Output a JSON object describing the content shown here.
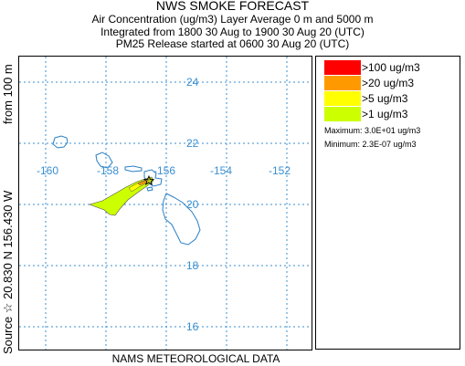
{
  "header": {
    "title": "NWS SMOKE FORECAST",
    "line1": "Air Concentration (ug/m3) Layer Average    0 m and  5000 m",
    "line2": "Integrated from 1800 30 Aug to 1900 30 Aug 20 (UTC)",
    "line3": "PM25 Release started at 0600 30 Aug 20 (UTC)"
  },
  "side_label": {
    "source": "Source ☆  20.830  N 156.430  W",
    "height": "from   100 m"
  },
  "footer": "NAMS METEOROLOGICAL DATA",
  "map": {
    "lat_labels": [
      "24",
      "22",
      "20",
      "18",
      "16"
    ],
    "lon_labels": [
      "-160",
      "-158",
      "-156",
      "-154",
      "-152"
    ],
    "grid_color": "#3a8fd0",
    "coast_color": "#2a7fc4",
    "plume_colors": {
      "gt1": "#ccff00",
      "gt5": "#ffff00",
      "gt20": "#ff9900"
    },
    "source_marker": "star"
  },
  "legend": {
    "items": [
      {
        "label": ">100 ug/m3",
        "color": "#ff0000"
      },
      {
        "label": ">20 ug/m3",
        "color": "#ff9900"
      },
      {
        "label": ">5 ug/m3",
        "color": "#ffff00"
      },
      {
        "label": ">1 ug/m3",
        "color": "#ccff00"
      }
    ],
    "maximum": "Maximum: 3.0E+01 ug/m3",
    "minimum": "Minimum: 2.3E-07 ug/m3"
  }
}
